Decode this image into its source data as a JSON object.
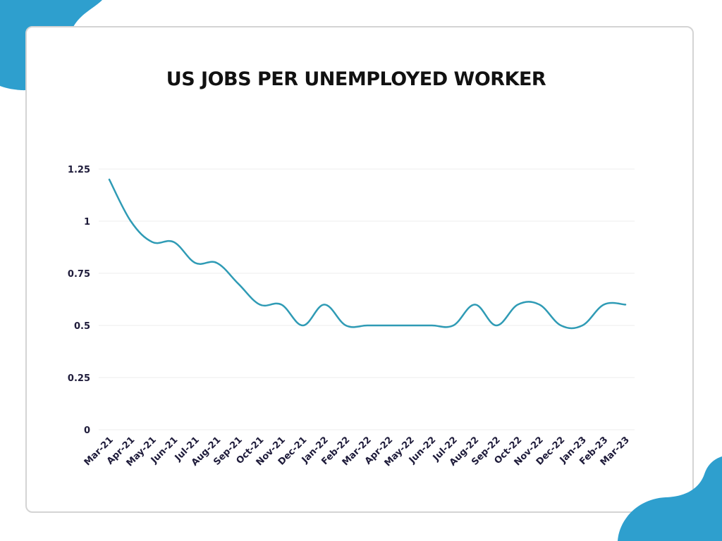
{
  "theme": {
    "accent": "#2e9fce",
    "line": "#2f9bb5",
    "text": "#111111",
    "axis_text": "#1e1b3a",
    "card_border": "#d4d4d4",
    "grid": "#ececec"
  },
  "chart_data": {
    "type": "line",
    "title": "US JOBS PER UNEMPLOYED WORKER",
    "xlabel": "",
    "ylabel": "",
    "ylim": [
      0,
      1.25
    ],
    "yticks": [
      "0",
      "0.25",
      "0.5",
      "0.75",
      "1",
      "1.25"
    ],
    "ytick_values": [
      0,
      0.25,
      0.5,
      0.75,
      1,
      1.25
    ],
    "grid": true,
    "legend": "none",
    "categories": [
      "Mar-21",
      "Apr-21",
      "May-21",
      "Jun-21",
      "Jul-21",
      "Aug-21",
      "Sep-21",
      "Oct-21",
      "Nov-21",
      "Dec-21",
      "Jan-22",
      "Feb-22",
      "Mar-22",
      "Apr-22",
      "May-22",
      "Jun-22",
      "Jul-22",
      "Aug-22",
      "Sep-22",
      "Oct-22",
      "Nov-22",
      "Dec-22",
      "Jan-23",
      "Feb-23",
      "Mar-23"
    ],
    "series": [
      {
        "values": [
          1.2,
          1.0,
          0.9,
          0.9,
          0.8,
          0.8,
          0.7,
          0.6,
          0.6,
          0.5,
          0.6,
          0.5,
          0.5,
          0.5,
          0.5,
          0.5,
          0.5,
          0.6,
          0.5,
          0.6,
          0.6,
          0.5,
          0.5,
          0.6,
          0.6
        ]
      }
    ]
  }
}
